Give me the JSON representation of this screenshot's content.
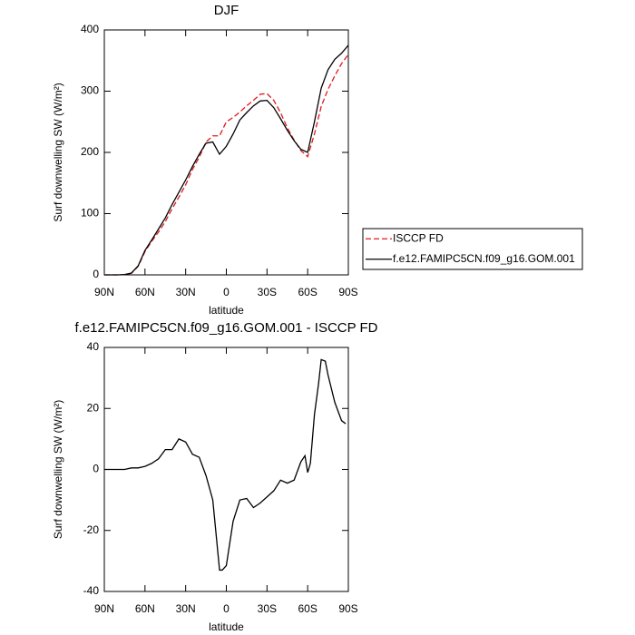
{
  "chart_data": [
    {
      "type": "line",
      "title": "DJF",
      "xlabel": "latitude",
      "ylabel": "Surf downwelling SW (W/m²)",
      "x": [
        90,
        85,
        80,
        75,
        70,
        65,
        60,
        55,
        50,
        45,
        40,
        35,
        30,
        25,
        20,
        15,
        10,
        5,
        0,
        -5,
        -10,
        -15,
        -20,
        -25,
        -30,
        -35,
        -40,
        -45,
        -50,
        -55,
        -60,
        -65,
        -70,
        -75,
        -80,
        -85,
        -90
      ],
      "series": [
        {
          "name": "ISCCP FD",
          "color": "#e0191e",
          "dash": true,
          "values": [
            0,
            0,
            0,
            0.5,
            2.5,
            14,
            38,
            55,
            70,
            87,
            108,
            127,
            147,
            172,
            192,
            217,
            227,
            227,
            250,
            257,
            266,
            276,
            285,
            295,
            296,
            285,
            265,
            240,
            220,
            203,
            193,
            230,
            275,
            303,
            325,
            345,
            360
          ]
        },
        {
          "name": "f.e12.FAMIPC5CN.f09_g16.GOM.001",
          "color": "#000000",
          "dash": false,
          "values": [
            0,
            0,
            0,
            0.5,
            3,
            15,
            40,
            57,
            75,
            93,
            115,
            135,
            155,
            177,
            197,
            215,
            217,
            197,
            210,
            230,
            253,
            265,
            276,
            284,
            285,
            273,
            255,
            236,
            219,
            205,
            200,
            250,
            305,
            335,
            352,
            362,
            375
          ]
        }
      ],
      "xlim": [
        90,
        -90
      ],
      "xticks": [
        {
          "value": 90,
          "label": "90N"
        },
        {
          "value": 60,
          "label": "60N"
        },
        {
          "value": 30,
          "label": "30N"
        },
        0,
        {
          "value": -30,
          "label": "30S"
        },
        {
          "value": -60,
          "label": "60S"
        },
        {
          "value": -90,
          "label": "90S"
        }
      ],
      "ylim": [
        0,
        400
      ],
      "yticks": [
        0,
        100,
        200,
        300,
        400
      ],
      "legend": "right"
    },
    {
      "type": "line",
      "title": "f.e12.FAMIPC5CN.f09_g16.GOM.001 - ISCCP FD",
      "xlabel": "latitude",
      "ylabel": "Surf downwelling SW (W/m²)",
      "x": [
        90,
        85,
        80,
        75,
        70,
        65,
        60,
        55,
        50,
        45,
        40,
        35,
        30,
        25,
        20,
        15,
        10,
        5,
        3,
        0,
        -5,
        -10,
        -15,
        -20,
        -25,
        -30,
        -35,
        -40,
        -45,
        -50,
        -55,
        -58,
        -60,
        -62,
        -65,
        -68,
        -70,
        -73,
        -75,
        -80,
        -85,
        -88
      ],
      "color": "#000000",
      "values": [
        0,
        0,
        0,
        0,
        0.5,
        0.5,
        1,
        2,
        3.5,
        6.5,
        6.5,
        10,
        9,
        5,
        4,
        -2,
        -10,
        -33,
        -33,
        -31.5,
        -17,
        -10,
        -9.5,
        -12.5,
        -11,
        -9,
        -7,
        -3.5,
        -4.5,
        -3.5,
        2.5,
        4.5,
        -1,
        2,
        18,
        28,
        36,
        35.5,
        31,
        22,
        16,
        15
      ],
      "xlim": [
        90,
        -90
      ],
      "xticks": [
        {
          "value": 90,
          "label": "90N"
        },
        {
          "value": 60,
          "label": "60N"
        },
        {
          "value": 30,
          "label": "30N"
        },
        0,
        {
          "value": -30,
          "label": "30S"
        },
        {
          "value": -60,
          "label": "60S"
        },
        {
          "value": -90,
          "label": "90S"
        }
      ],
      "ylim": [
        -40,
        40
      ],
      "yticks": [
        -40,
        -20,
        0,
        20,
        40
      ]
    }
  ]
}
